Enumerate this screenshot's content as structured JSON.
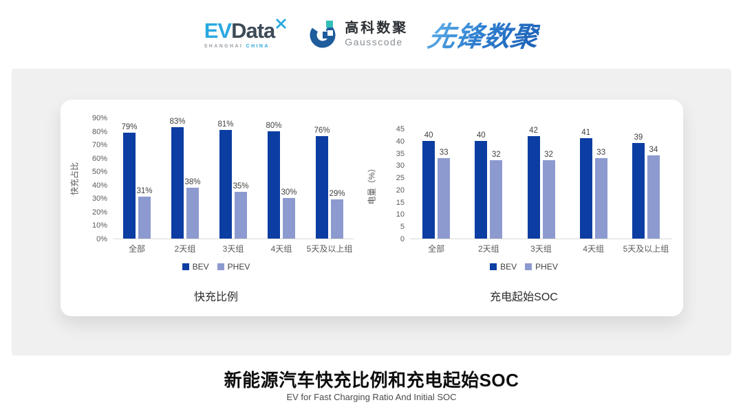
{
  "header": {
    "evdata": {
      "ev": "EV",
      "data": "Data",
      "sub_left": "SHANGHAI",
      "sub_right": "CHINA"
    },
    "gausscode": {
      "cn": "高科数聚",
      "en": "Gausscode"
    },
    "pioneer": {
      "text": "先锋数聚"
    }
  },
  "chart_data": [
    {
      "type": "bar",
      "title": "快充比例",
      "ylabel": "快充占比",
      "categories": [
        "全部",
        "2天组",
        "3天组",
        "4天组",
        "5天及以上组"
      ],
      "series": [
        {
          "name": "BEV",
          "color": "#0c3da2",
          "values": [
            79,
            83,
            81,
            80,
            76
          ]
        },
        {
          "name": "PHEV",
          "color": "#8d9ad0",
          "values": [
            31,
            38,
            35,
            30,
            29
          ]
        }
      ],
      "ylim": [
        0,
        90
      ],
      "ytick_step": 10,
      "tick_suffix": "%",
      "value_suffix": "%",
      "grid": false,
      "legend_position": "bottom"
    },
    {
      "type": "bar",
      "title": "充电起始SOC",
      "ylabel": "电量（%）",
      "categories": [
        "全部",
        "2天组",
        "3天组",
        "4天组",
        "5天及以上组"
      ],
      "series": [
        {
          "name": "BEV",
          "color": "#0c3da2",
          "values": [
            40,
            40,
            42,
            41,
            39
          ]
        },
        {
          "name": "PHEV",
          "color": "#8d9ad0",
          "values": [
            33,
            32,
            32,
            33,
            34
          ]
        }
      ],
      "ylim": [
        0,
        45
      ],
      "ytick_step": 5,
      "tick_suffix": "",
      "value_suffix": "",
      "grid": false,
      "legend_position": "bottom"
    }
  ],
  "footer": {
    "title": "新能源汽车快充比例和充电起始SOC",
    "subtitle": "EV for Fast Charging Ratio And Initial SOC"
  },
  "theme": {
    "bev_color": "#0c3da2",
    "phev_color": "#8d9ad0",
    "accent_blue": "#29a8e0",
    "gausscode_blue": "#1e5c9b",
    "gausscode_teal": "#33bfb7",
    "card_bg": "#f0f0f0",
    "axis_text": "#595959"
  }
}
